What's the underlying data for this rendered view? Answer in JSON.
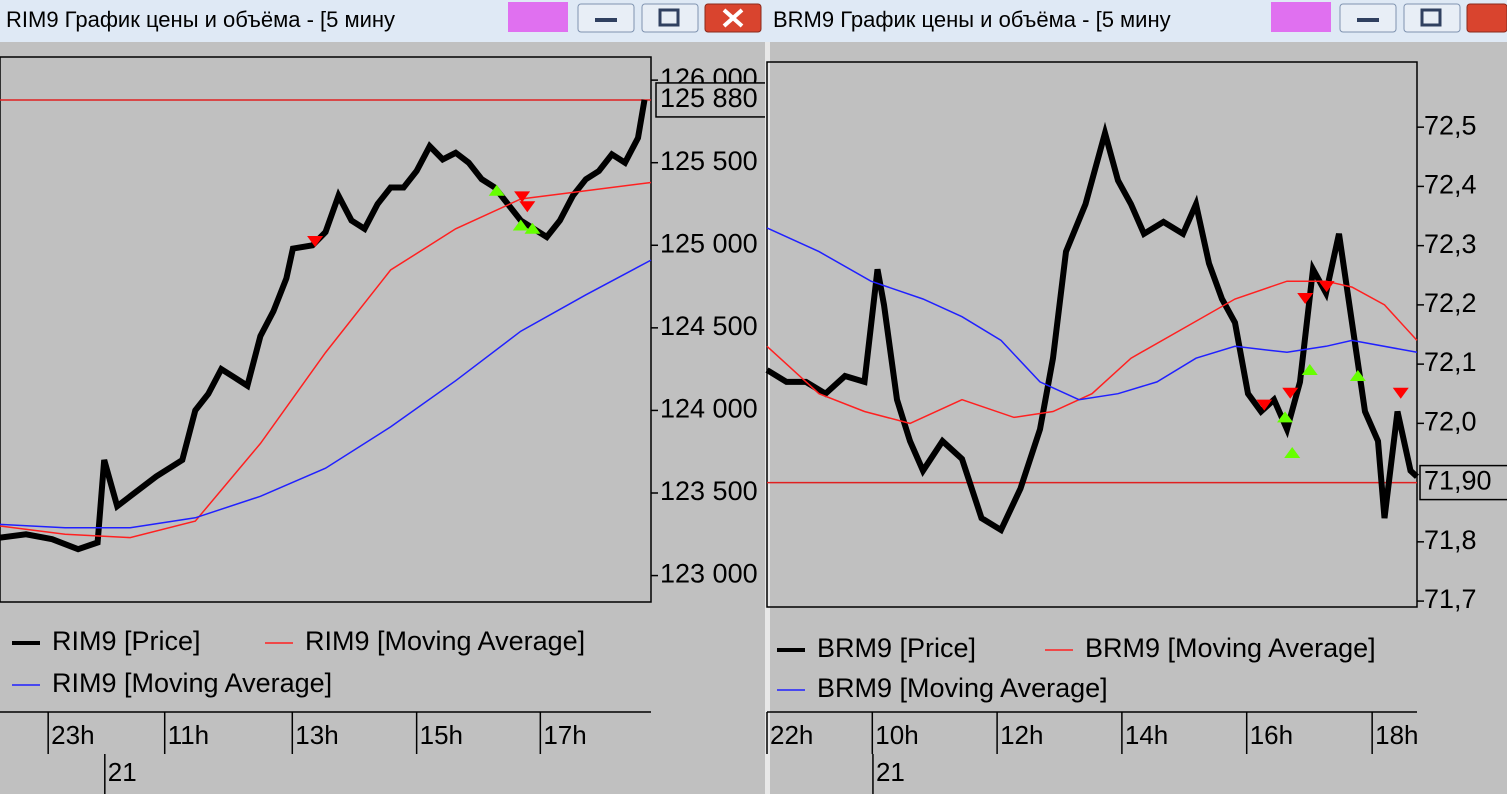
{
  "chart_data": [
    {
      "type": "line",
      "title": "RIM9 График цены и объёма - [5 мину",
      "xlim": [
        0,
        100
      ],
      "ylim": [
        122840,
        126140
      ],
      "yticks": [
        {
          "value": 126000,
          "label": "126 000"
        },
        {
          "value": 125500,
          "label": "125 500"
        },
        {
          "value": 125000,
          "label": "125 000"
        },
        {
          "value": 124500,
          "label": "124 500"
        },
        {
          "value": 124000,
          "label": "124 000"
        },
        {
          "value": 123500,
          "label": "123 500"
        },
        {
          "value": 123000,
          "label": "123 000"
        }
      ],
      "xticks": [
        {
          "value": 7.4,
          "label": "23h"
        },
        {
          "value": 25.3,
          "label": "11h"
        },
        {
          "value": 44.9,
          "label": "13h"
        },
        {
          "value": 64,
          "label": "15h"
        },
        {
          "value": 83,
          "label": "17h"
        }
      ],
      "date_ticks": [
        {
          "value": 16.1,
          "label": "21"
        }
      ],
      "current_price": {
        "value": 125880,
        "label": "125 880",
        "color": "#e02020"
      },
      "series": [
        {
          "name": "RIM9 [Price]",
          "color": "#000000",
          "x": [
            0,
            4,
            8,
            12,
            15,
            16,
            18,
            20,
            24,
            28,
            30,
            32,
            34,
            36,
            38,
            40,
            42,
            44,
            45,
            48,
            50,
            52,
            54,
            56,
            58,
            60,
            62,
            64,
            66,
            68,
            70,
            72,
            74,
            76,
            78,
            80,
            82,
            84,
            86,
            88,
            90,
            92,
            94,
            96,
            98,
            99
          ],
          "values": [
            123230,
            123250,
            123220,
            123160,
            123200,
            123700,
            123420,
            123480,
            123600,
            123700,
            124000,
            124100,
            124250,
            124200,
            124150,
            124450,
            124600,
            124800,
            124980,
            125000,
            125080,
            125300,
            125150,
            125100,
            125250,
            125350,
            125350,
            125450,
            125600,
            125520,
            125560,
            125500,
            125400,
            125350,
            125250,
            125150,
            125100,
            125050,
            125150,
            125300,
            125400,
            125450,
            125550,
            125500,
            125650,
            125880
          ]
        },
        {
          "name": "RIM9 [Moving Average]",
          "color": "#ff2020",
          "x": [
            0,
            10,
            20,
            30,
            40,
            50,
            60,
            70,
            80,
            90,
            100
          ],
          "values": [
            123300,
            123250,
            123230,
            123330,
            123800,
            124350,
            124850,
            125100,
            125280,
            125330,
            125380
          ]
        },
        {
          "name": "RIM9 [Moving Average]",
          "color": "#2020ff",
          "x": [
            0,
            10,
            20,
            30,
            40,
            50,
            60,
            70,
            80,
            90,
            100
          ],
          "values": [
            123310,
            123290,
            123290,
            123350,
            123480,
            123650,
            123900,
            124180,
            124480,
            124700,
            124910
          ]
        }
      ],
      "markers": {
        "sell": {
          "color": "#ff0000",
          "x": [
            48.4,
            80.2,
            81
          ],
          "values": [
            125020,
            125290,
            125230
          ]
        },
        "buy": {
          "color": "#66ff00",
          "x": [
            76.3,
            80,
            81.8
          ],
          "values": [
            125330,
            125120,
            125100
          ]
        }
      }
    },
    {
      "type": "line",
      "title": "BRM9 График цены и объёма - [5 мину",
      "xlim": [
        0,
        100
      ],
      "ylim": [
        71.69,
        72.61
      ],
      "yticks": [
        {
          "value": 72.5,
          "label": "72,5"
        },
        {
          "value": 72.4,
          "label": "72,4"
        },
        {
          "value": 72.3,
          "label": "72,3"
        },
        {
          "value": 72.2,
          "label": "72,2"
        },
        {
          "value": 72.1,
          "label": "72,1"
        },
        {
          "value": 72.0,
          "label": "72,0"
        },
        {
          "value": 71.8,
          "label": "71,8"
        },
        {
          "value": 71.7,
          "label": "71,7"
        }
      ],
      "xticks": [
        {
          "value": 0,
          "label": "22h"
        },
        {
          "value": 16.2,
          "label": "10h"
        },
        {
          "value": 35.4,
          "label": "12h"
        },
        {
          "value": 54.6,
          "label": "14h"
        },
        {
          "value": 73.8,
          "label": "16h"
        },
        {
          "value": 93.1,
          "label": "18h"
        }
      ],
      "date_ticks": [
        {
          "value": 16.3,
          "label": "21"
        }
      ],
      "current_price": {
        "value": 71.9,
        "label": "71,90",
        "color": "#e02020"
      },
      "series": [
        {
          "name": "BRM9 [Price]",
          "color": "#000000",
          "x": [
            0,
            3,
            6,
            9,
            12,
            15,
            17,
            18,
            20,
            22,
            24,
            27,
            30,
            33,
            36,
            39,
            42,
            44,
            46,
            49,
            52,
            54,
            56,
            58,
            61,
            64,
            66,
            68,
            70,
            72,
            74,
            76,
            78,
            80,
            82,
            84,
            86,
            88,
            90,
            92,
            94,
            95,
            97,
            99,
            100
          ],
          "values": [
            72.09,
            72.07,
            72.07,
            72.05,
            72.08,
            72.07,
            72.26,
            72.2,
            72.04,
            71.97,
            71.92,
            71.97,
            71.94,
            71.84,
            71.82,
            71.89,
            71.99,
            72.11,
            72.29,
            72.37,
            72.49,
            72.41,
            72.37,
            72.32,
            72.34,
            72.32,
            72.37,
            72.27,
            72.21,
            72.17,
            72.05,
            72.02,
            72.04,
            71.99,
            72.07,
            72.26,
            72.22,
            72.32,
            72.17,
            72.02,
            71.97,
            71.84,
            72.02,
            71.92,
            71.91
          ]
        },
        {
          "name": "BRM9 [Moving Average]",
          "color": "#ff2020",
          "x": [
            0,
            3,
            8,
            15,
            22,
            30,
            38,
            44,
            50,
            56,
            64,
            72,
            80,
            86,
            90,
            95,
            100
          ],
          "values": [
            72.13,
            72.1,
            72.05,
            72.02,
            72.0,
            72.04,
            72.01,
            72.02,
            72.05,
            72.11,
            72.16,
            72.21,
            72.24,
            72.24,
            72.23,
            72.2,
            72.14
          ]
        },
        {
          "name": "BRM9 [Moving Average]",
          "color": "#2020ff",
          "x": [
            0,
            8,
            16,
            24,
            30,
            36,
            42,
            48,
            54,
            60,
            66,
            72,
            80,
            86,
            90,
            100
          ],
          "values": [
            72.33,
            72.29,
            72.24,
            72.21,
            72.18,
            72.14,
            72.07,
            72.04,
            72.05,
            72.07,
            72.11,
            72.13,
            72.12,
            72.13,
            72.14,
            72.12
          ]
        }
      ],
      "markers": {
        "sell": {
          "color": "#ff0000",
          "x": [
            76.5,
            80.5,
            82.8,
            86.1,
            97.5
          ],
          "values": [
            72.03,
            72.05,
            72.21,
            72.23,
            72.05
          ]
        },
        "buy": {
          "color": "#66ff00",
          "x": [
            79.7,
            80.8,
            83.5,
            90.9
          ],
          "values": [
            72.01,
            71.95,
            72.09,
            72.08
          ]
        }
      }
    }
  ]
}
